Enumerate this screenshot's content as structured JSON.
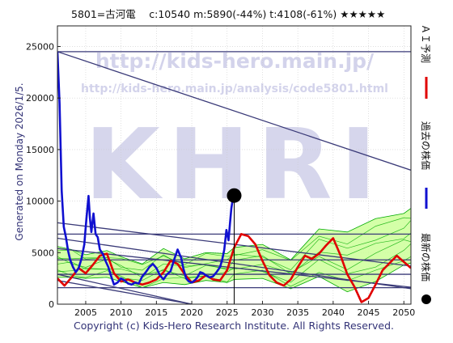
{
  "header": {
    "title": "5801=古河電　 c:10540  m:5890(-44%)  t:4108(-61%)  ★★★★★"
  },
  "side_label": "Generated on Monday 2026/1/5.",
  "watermark": {
    "url1": "http://kids-hero.main.jp/",
    "url2": "http://kids-hero.main.jp/analysis/code5801.html",
    "logo": "KHRI"
  },
  "footer": {
    "copyright": "Copyright (c) Kids-Hero Research Institute. All Rights Reserved."
  },
  "legend": {
    "position": "right",
    "items": [
      {
        "label": "ＡＩ予測",
        "color": "#e00000",
        "marker": "line"
      },
      {
        "label": "過去の株価",
        "color": "#1010d0",
        "marker": "line"
      },
      {
        "label": "最新の株価",
        "color": "#000000",
        "marker": "dot"
      }
    ]
  },
  "colors": {
    "price_line": "#1010d0",
    "prediction_line": "#e00000",
    "latest_dot": "#000000",
    "trend_lines": "#3a3a78",
    "band_fill": "#ccff99",
    "band_lines": "#00aa00"
  },
  "chart_data": {
    "type": "line",
    "xlim": [
      2001,
      2051
    ],
    "ylim": [
      0,
      27000
    ],
    "x_ticks": [
      2005,
      2010,
      2015,
      2020,
      2025,
      2030,
      2035,
      2040,
      2045,
      2050
    ],
    "x_tick_labels": [
      "2005",
      "2010",
      "2015",
      "2020",
      "2025",
      "2030",
      "2035",
      "2040",
      "2045",
      "2050"
    ],
    "y_ticks": [
      0,
      5000,
      10000,
      15000,
      20000,
      25000
    ],
    "y_tick_labels": [
      "0",
      "5000",
      "10000",
      "15000",
      "20000",
      "25000"
    ],
    "grid": true,
    "legend": "right",
    "latest_point": {
      "x": 2026.0,
      "y": 10540
    },
    "horizontal_levels": [
      24500,
      6800,
      4300,
      2900,
      1600
    ],
    "trend_segments": [
      {
        "x": [
          2001,
          2051
        ],
        "y": [
          24500,
          13000
        ]
      },
      {
        "x": [
          2001,
          2051
        ],
        "y": [
          5400,
          1650
        ]
      },
      {
        "x": [
          2001,
          2051
        ],
        "y": [
          7900,
          3700
        ]
      },
      {
        "x": [
          2001,
          2051
        ],
        "y": [
          6400,
          1500
        ]
      },
      {
        "x": [
          2001,
          2020
        ],
        "y": [
          2900,
          0
        ]
      },
      {
        "x": [
          2001,
          2020
        ],
        "y": [
          2300,
          0
        ]
      }
    ],
    "band": {
      "x": [
        2001,
        2003,
        2005,
        2008,
        2010,
        2013,
        2016,
        2019,
        2022,
        2025,
        2026,
        2030,
        2034,
        2038,
        2042,
        2046,
        2050,
        2051
      ],
      "upper": [
        5600,
        5300,
        4800,
        5200,
        4600,
        3900,
        5400,
        4400,
        5000,
        4900,
        5500,
        5800,
        4300,
        7300,
        7000,
        8300,
        8800,
        9300
      ],
      "lower": [
        2600,
        2600,
        2500,
        2600,
        2200,
        1600,
        2100,
        1900,
        2300,
        2100,
        2400,
        2500,
        1500,
        2700,
        1200,
        2200,
        3800,
        4000
      ],
      "inner_lines": 6
    },
    "series": [
      {
        "name": "過去の株価",
        "x": [
          2001.0,
          2001.3,
          2001.6,
          2001.9,
          2002.2,
          2002.5,
          2002.8,
          2003.2,
          2003.6,
          2004.0,
          2004.4,
          2004.8,
          2005.1,
          2005.4,
          2005.6,
          2005.8,
          2006.1,
          2006.4,
          2006.7,
          2007.0,
          2007.4,
          2007.8,
          2008.2,
          2008.6,
          2009.0,
          2009.5,
          2010.0,
          2010.5,
          2011.0,
          2011.5,
          2012.0,
          2012.5,
          2013.0,
          2013.5,
          2014.0,
          2014.5,
          2015.0,
          2015.5,
          2016.0,
          2016.5,
          2017.0,
          2017.5,
          2018.0,
          2018.5,
          2018.8,
          2019.2,
          2019.6,
          2020.0,
          2020.4,
          2020.8,
          2021.2,
          2021.6,
          2022.0,
          2022.5,
          2023.0,
          2023.5,
          2024.0,
          2024.3,
          2024.6,
          2024.9,
          2025.2,
          2025.4,
          2025.6,
          2025.8,
          2026.0
        ],
        "y": [
          24500,
          19500,
          11000,
          7500,
          6500,
          5200,
          4300,
          3600,
          3100,
          3500,
          4400,
          5800,
          8300,
          10500,
          8300,
          7000,
          8800,
          6800,
          6500,
          5300,
          4900,
          4200,
          3600,
          2700,
          1900,
          2100,
          2500,
          2300,
          2000,
          1900,
          2100,
          2000,
          2700,
          3100,
          3600,
          3900,
          3500,
          2800,
          2400,
          2900,
          3200,
          4300,
          5300,
          4500,
          3500,
          2500,
          2200,
          2100,
          2300,
          2600,
          3100,
          3000,
          2800,
          2600,
          2700,
          3100,
          3600,
          4300,
          5300,
          7200,
          6200,
          7800,
          9300,
          10200,
          10540
        ]
      },
      {
        "name": "ＡＩ予測",
        "x": [
          2001.0,
          2002.0,
          2003.0,
          2004.0,
          2005.0,
          2006.0,
          2007.0,
          2008.0,
          2009.0,
          2010.0,
          2011.0,
          2012.0,
          2013.0,
          2014.0,
          2015.0,
          2016.0,
          2017.0,
          2018.0,
          2019.0,
          2020.0,
          2021.0,
          2022.0,
          2023.0,
          2024.0,
          2025.0,
          2026.0,
          2027.0,
          2028.0,
          2029.0,
          2030.0,
          2031.0,
          2032.0,
          2033.0,
          2034.0,
          2035.0,
          2036.0,
          2037.0,
          2038.0,
          2039.0,
          2040.0,
          2041.0,
          2042.0,
          2043.0,
          2044.0,
          2045.0,
          2046.0,
          2047.0,
          2048.0,
          2049.0,
          2050.0,
          2051.0
        ],
        "y": [
          2500,
          1800,
          2600,
          3500,
          3000,
          3800,
          4700,
          4900,
          3000,
          2200,
          2400,
          2100,
          1900,
          2100,
          2400,
          3100,
          4200,
          3900,
          2900,
          2100,
          2300,
          2800,
          2400,
          2300,
          3300,
          5500,
          6800,
          6600,
          5800,
          4200,
          2800,
          2100,
          1800,
          2400,
          3600,
          4700,
          4400,
          4900,
          5700,
          6400,
          4800,
          2900,
          1700,
          200,
          600,
          1900,
          3300,
          4000,
          4700,
          4100,
          3500
        ]
      }
    ]
  }
}
